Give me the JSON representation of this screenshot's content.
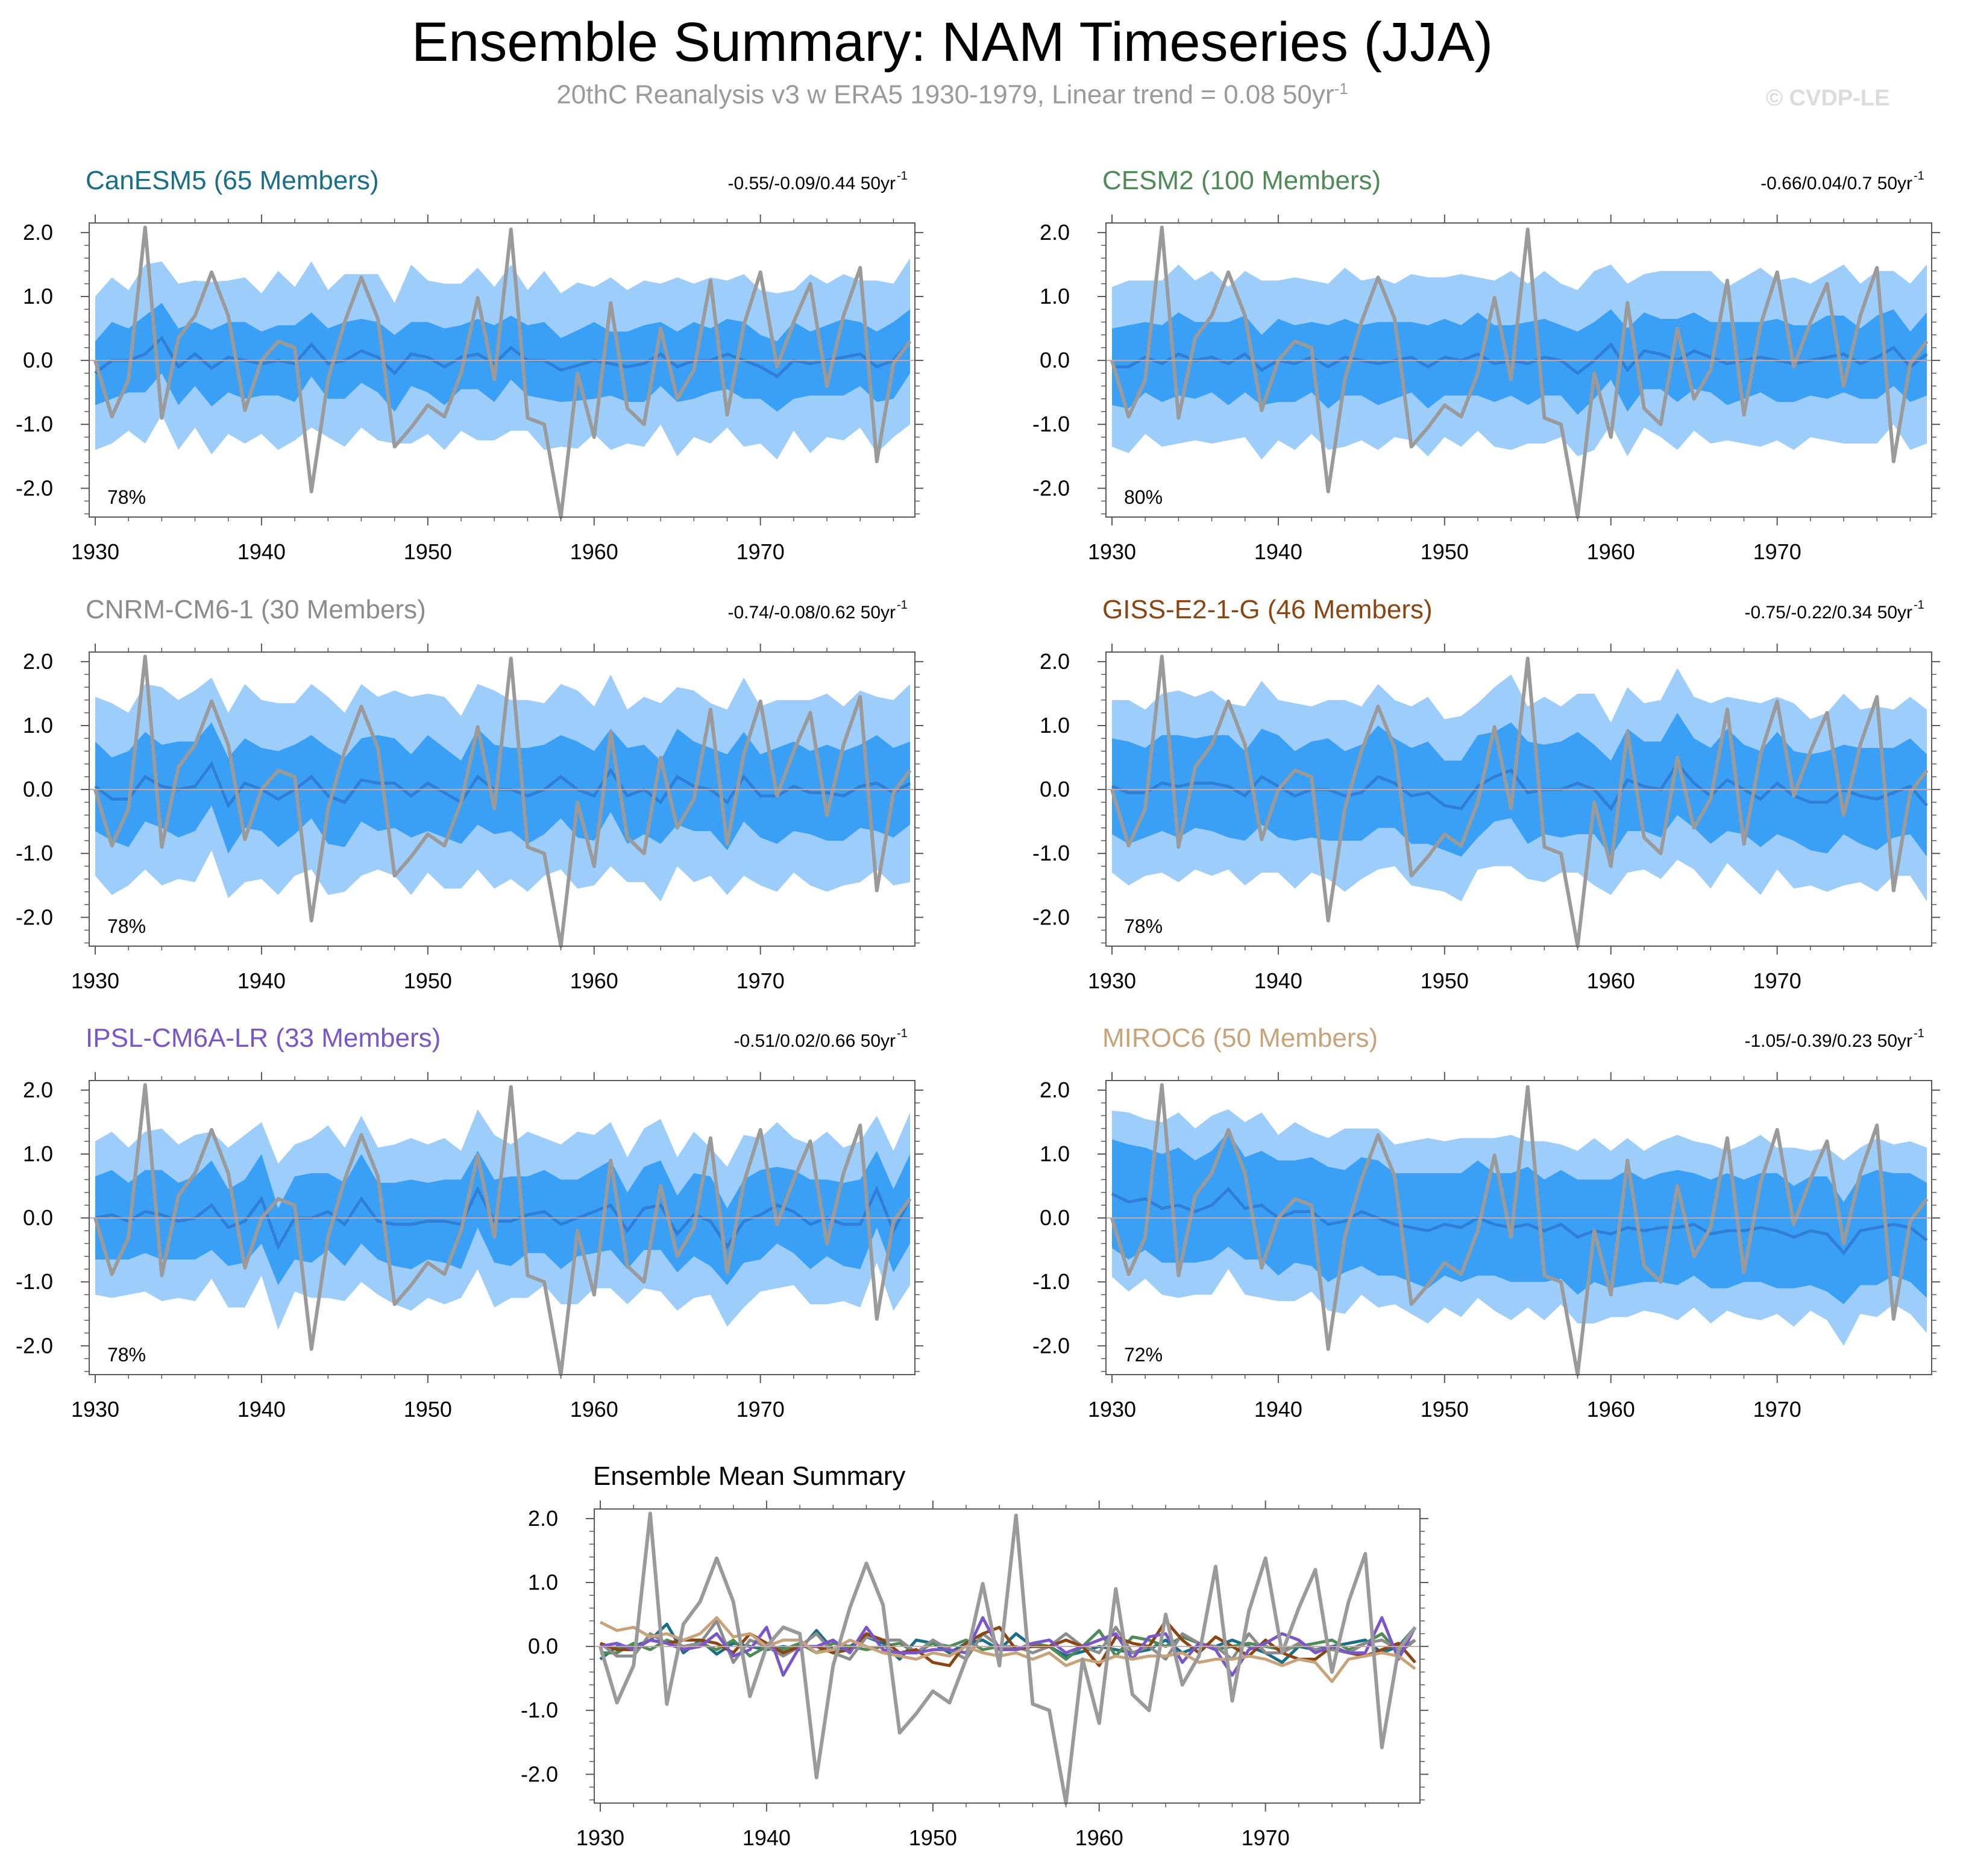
{
  "title": "Ensemble Summary: NAM Timeseries (JJA)",
  "subtitle": {
    "text": "20thC Reanalysis v3 w ERA5 1930-1979, Linear trend = 0.08 50yr",
    "superscript": "-1"
  },
  "credit": "© CVDP-LE",
  "unit_text": "50yr",
  "unit_superscript": "-1",
  "colors": {
    "outer_band": "#9dcdfa",
    "inner_band": "#3aa0f5",
    "ens_mean": "#2f7fd6",
    "observed": "#9a9a9a",
    "zero_line": "#c7a8a8",
    "frame": "#5a5a5a"
  },
  "chart_data": {
    "type": "line",
    "x": [
      1930,
      1931,
      1932,
      1933,
      1934,
      1935,
      1936,
      1937,
      1938,
      1939,
      1940,
      1941,
      1942,
      1943,
      1944,
      1945,
      1946,
      1947,
      1948,
      1949,
      1950,
      1951,
      1952,
      1953,
      1954,
      1955,
      1956,
      1957,
      1958,
      1959,
      1960,
      1961,
      1962,
      1963,
      1964,
      1965,
      1966,
      1967,
      1968,
      1969,
      1970,
      1971,
      1972,
      1973,
      1974,
      1975,
      1976,
      1977,
      1978,
      1979
    ],
    "x_ticks": [
      "1930",
      "1940",
      "1950",
      "1960",
      "1970"
    ],
    "y_ticks": [
      "2.0",
      "1.0",
      "0.0",
      "-1.0",
      "-2.0"
    ],
    "ylim": [
      -2.45,
      2.15
    ],
    "observed": {
      "name": "20thC Reanalysis v3 w ERA5",
      "values": [
        0.0,
        -0.88,
        -0.3,
        2.08,
        -0.9,
        0.35,
        0.7,
        1.38,
        0.7,
        -0.78,
        0.0,
        0.3,
        0.2,
        -2.05,
        -0.3,
        0.6,
        1.3,
        0.65,
        -1.35,
        -1.05,
        -0.7,
        -0.88,
        -0.2,
        0.98,
        -0.3,
        2.05,
        -0.9,
        -1.0,
        -2.45,
        -0.2,
        -1.2,
        0.9,
        -0.75,
        -1.0,
        0.5,
        -0.6,
        -0.15,
        1.25,
        -0.85,
        0.55,
        1.38,
        -0.1,
        0.6,
        1.2,
        -0.4,
        0.7,
        1.45,
        -1.58,
        -0.05,
        0.3
      ]
    },
    "panels": [
      {
        "model": "CanESM5",
        "members_text": "(65 Members)",
        "color": "#1a6e85",
        "trend_text": "-0.55/-0.09/0.44 50yr",
        "percent": "78%",
        "mean": [
          -0.2,
          0.0,
          0.0,
          0.1,
          0.35,
          -0.1,
          0.1,
          -0.12,
          0.05,
          0.0,
          -0.05,
          0.0,
          -0.05,
          0.25,
          -0.05,
          0.0,
          0.15,
          0.05,
          -0.2,
          0.1,
          0.05,
          -0.1,
          0.05,
          0.1,
          -0.05,
          0.2,
          0.0,
          0.0,
          -0.15,
          -0.08,
          0.0,
          -0.05,
          -0.1,
          -0.05,
          0.1,
          -0.1,
          0.0,
          0.0,
          0.1,
          0.0,
          -0.1,
          -0.25,
          0.0,
          -0.05,
          0.0,
          0.05,
          0.1,
          -0.1,
          0.0,
          0.3
        ],
        "inner_hw": [
          0.5,
          0.6,
          0.5,
          0.6,
          0.55,
          0.6,
          0.5,
          0.6,
          0.55,
          0.6,
          0.5,
          0.55,
          0.6,
          0.5,
          0.55,
          0.6,
          0.5,
          0.55,
          0.6,
          0.5,
          0.55,
          0.6,
          0.5,
          0.55,
          0.6,
          0.5,
          0.55,
          0.6,
          0.5,
          0.55,
          0.6,
          0.5,
          0.55,
          0.6,
          0.5,
          0.55,
          0.6,
          0.5,
          0.55,
          0.6,
          0.5,
          0.55,
          0.6,
          0.5,
          0.55,
          0.6,
          0.5,
          0.55,
          0.6,
          0.5
        ],
        "outer_hw": [
          1.2,
          1.3,
          1.1,
          1.4,
          1.2,
          1.3,
          1.15,
          1.35,
          1.2,
          1.3,
          1.1,
          1.4,
          1.2,
          1.3,
          1.15,
          1.35,
          1.2,
          1.3,
          1.1,
          1.4,
          1.2,
          1.3,
          1.15,
          1.35,
          1.2,
          1.3,
          1.1,
          1.4,
          1.2,
          1.3,
          1.15,
          1.35,
          1.2,
          1.3,
          1.1,
          1.4,
          1.2,
          1.3,
          1.15,
          1.35,
          1.2,
          1.3,
          1.1,
          1.4,
          1.2,
          1.3,
          1.15,
          1.35,
          1.2,
          1.3
        ]
      },
      {
        "model": "CESM2",
        "members_text": "(100 Members)",
        "color": "#4f8a57",
        "trend_text": "-0.66/0.04/0.7 50yr",
        "percent": "80%",
        "mean": [
          -0.1,
          -0.1,
          0.05,
          -0.05,
          0.1,
          0.0,
          0.05,
          -0.05,
          0.1,
          -0.15,
          0.0,
          -0.05,
          0.05,
          -0.1,
          0.05,
          0.0,
          -0.05,
          0.0,
          0.05,
          -0.1,
          0.05,
          0.0,
          0.1,
          -0.05,
          0.0,
          -0.05,
          0.05,
          0.0,
          -0.2,
          0.0,
          0.25,
          -0.15,
          0.15,
          0.1,
          0.0,
          0.15,
          0.05,
          -0.05,
          0.0,
          0.05,
          0.0,
          -0.05,
          0.0,
          0.05,
          0.1,
          -0.05,
          0.05,
          0.2,
          -0.1,
          0.1
        ],
        "inner_hw": [
          0.6,
          0.65,
          0.55,
          0.6,
          0.65,
          0.6,
          0.55,
          0.65,
          0.6,
          0.55,
          0.65,
          0.6,
          0.55,
          0.65,
          0.6,
          0.55,
          0.65,
          0.6,
          0.55,
          0.65,
          0.6,
          0.55,
          0.65,
          0.6,
          0.55,
          0.65,
          0.6,
          0.55,
          0.65,
          0.6,
          0.55,
          0.65,
          0.6,
          0.55,
          0.65,
          0.6,
          0.55,
          0.65,
          0.6,
          0.55,
          0.65,
          0.6,
          0.55,
          0.65,
          0.6,
          0.55,
          0.65,
          0.6,
          0.55,
          0.65
        ],
        "outer_hw": [
          1.25,
          1.35,
          1.2,
          1.3,
          1.4,
          1.25,
          1.35,
          1.2,
          1.3,
          1.4,
          1.25,
          1.35,
          1.2,
          1.3,
          1.4,
          1.25,
          1.35,
          1.2,
          1.3,
          1.4,
          1.25,
          1.35,
          1.2,
          1.3,
          1.4,
          1.25,
          1.35,
          1.2,
          1.3,
          1.4,
          1.25,
          1.35,
          1.2,
          1.3,
          1.4,
          1.25,
          1.35,
          1.2,
          1.3,
          1.4,
          1.25,
          1.35,
          1.2,
          1.3,
          1.4,
          1.25,
          1.35,
          1.2,
          1.3,
          1.4
        ]
      },
      {
        "model": "CNRM-CM6-1",
        "members_text": "(30 Members)",
        "color": "#8c8c8c",
        "trend_text": "-0.74/-0.08/0.62 50yr",
        "percent": "78%",
        "mean": [
          0.05,
          -0.15,
          -0.15,
          0.2,
          0.05,
          0.0,
          0.05,
          0.4,
          -0.25,
          0.1,
          0.0,
          -0.15,
          0.0,
          0.2,
          -0.1,
          -0.2,
          0.15,
          0.1,
          0.1,
          -0.1,
          0.1,
          -0.05,
          -0.2,
          0.2,
          0.0,
          0.0,
          -0.1,
          0.0,
          0.2,
          0.0,
          -0.1,
          0.3,
          -0.1,
          0.0,
          -0.2,
          0.2,
          0.05,
          0.0,
          -0.2,
          0.2,
          -0.1,
          -0.1,
          0.05,
          -0.05,
          -0.05,
          -0.1,
          0.05,
          0.1,
          -0.05,
          0.1
        ],
        "inner_hw": [
          0.7,
          0.65,
          0.75,
          0.7,
          0.65,
          0.75,
          0.7,
          0.65,
          0.75,
          0.7,
          0.65,
          0.75,
          0.7,
          0.65,
          0.75,
          0.7,
          0.65,
          0.75,
          0.7,
          0.65,
          0.75,
          0.7,
          0.65,
          0.75,
          0.7,
          0.65,
          0.75,
          0.7,
          0.65,
          0.75,
          0.7,
          0.65,
          0.75,
          0.7,
          0.65,
          0.75,
          0.7,
          0.65,
          0.75,
          0.7,
          0.65,
          0.75,
          0.7,
          0.65,
          0.75,
          0.7,
          0.65,
          0.75,
          0.7,
          0.65
        ],
        "outer_hw": [
          1.4,
          1.5,
          1.35,
          1.45,
          1.55,
          1.4,
          1.5,
          1.35,
          1.45,
          1.55,
          1.4,
          1.5,
          1.35,
          1.45,
          1.55,
          1.4,
          1.5,
          1.35,
          1.45,
          1.55,
          1.4,
          1.5,
          1.35,
          1.45,
          1.55,
          1.4,
          1.5,
          1.35,
          1.45,
          1.55,
          1.4,
          1.5,
          1.35,
          1.45,
          1.55,
          1.4,
          1.5,
          1.35,
          1.45,
          1.55,
          1.4,
          1.5,
          1.35,
          1.45,
          1.55,
          1.4,
          1.5,
          1.35,
          1.45,
          1.55
        ]
      },
      {
        "model": "GISS-E2-1-G",
        "members_text": "(46 Members)",
        "color": "#8b4513",
        "trend_text": "-0.75/-0.22/0.34 50yr",
        "percent": "78%",
        "mean": [
          0.05,
          -0.05,
          -0.05,
          0.1,
          0.05,
          0.1,
          0.1,
          0.05,
          -0.1,
          0.2,
          0.05,
          -0.1,
          0.0,
          0.0,
          -0.1,
          -0.05,
          0.2,
          0.1,
          -0.1,
          -0.05,
          -0.25,
          -0.3,
          0.05,
          0.2,
          0.3,
          -0.05,
          0.0,
          0.0,
          0.1,
          0.0,
          -0.3,
          0.15,
          0.05,
          0.0,
          0.4,
          0.1,
          -0.1,
          0.15,
          0.0,
          -0.15,
          0.1,
          -0.1,
          -0.2,
          -0.2,
          0.0,
          -0.1,
          -0.15,
          -0.05,
          0.05,
          -0.25
        ],
        "inner_hw": [
          0.75,
          0.8,
          0.7,
          0.75,
          0.8,
          0.7,
          0.75,
          0.8,
          0.7,
          0.75,
          0.8,
          0.7,
          0.75,
          0.8,
          0.7,
          0.75,
          0.8,
          0.7,
          0.75,
          0.8,
          0.7,
          0.75,
          0.8,
          0.7,
          0.75,
          0.8,
          0.7,
          0.75,
          0.8,
          0.7,
          0.75,
          0.8,
          0.7,
          0.75,
          0.8,
          0.7,
          0.75,
          0.8,
          0.7,
          0.75,
          0.8,
          0.7,
          0.75,
          0.8,
          0.7,
          0.75,
          0.8,
          0.7,
          0.75,
          0.8
        ],
        "outer_hw": [
          1.35,
          1.45,
          1.3,
          1.4,
          1.5,
          1.35,
          1.45,
          1.3,
          1.4,
          1.5,
          1.35,
          1.45,
          1.3,
          1.4,
          1.5,
          1.35,
          1.45,
          1.3,
          1.4,
          1.5,
          1.35,
          1.45,
          1.3,
          1.4,
          1.5,
          1.35,
          1.45,
          1.3,
          1.4,
          1.5,
          1.35,
          1.45,
          1.3,
          1.4,
          1.5,
          1.35,
          1.45,
          1.3,
          1.4,
          1.5,
          1.35,
          1.45,
          1.3,
          1.4,
          1.5,
          1.35,
          1.45,
          1.3,
          1.4,
          1.5
        ]
      },
      {
        "model": "IPSL-CM6A-LR",
        "members_text": "(33 Members)",
        "color": "#7a56c8",
        "trend_text": "-0.51/0.02/0.66 50yr",
        "percent": "78%",
        "mean": [
          0.0,
          0.05,
          -0.05,
          0.1,
          0.05,
          -0.05,
          0.0,
          0.2,
          -0.15,
          -0.05,
          0.3,
          -0.45,
          0.0,
          0.0,
          0.1,
          -0.1,
          0.3,
          -0.05,
          -0.1,
          -0.1,
          -0.05,
          -0.05,
          -0.1,
          0.45,
          -0.05,
          -0.05,
          0.05,
          0.1,
          -0.1,
          0.0,
          0.1,
          0.2,
          -0.2,
          0.15,
          0.2,
          -0.25,
          0.05,
          -0.05,
          -0.45,
          -0.05,
          0.05,
          0.2,
          0.1,
          -0.1,
          0.0,
          -0.1,
          -0.1,
          0.45,
          -0.2,
          0.3
        ],
        "inner_hw": [
          0.65,
          0.7,
          0.6,
          0.65,
          0.7,
          0.6,
          0.65,
          0.7,
          0.6,
          0.65,
          0.7,
          0.6,
          0.65,
          0.7,
          0.6,
          0.65,
          0.7,
          0.6,
          0.65,
          0.7,
          0.6,
          0.65,
          0.7,
          0.6,
          0.65,
          0.7,
          0.6,
          0.65,
          0.7,
          0.6,
          0.65,
          0.7,
          0.6,
          0.65,
          0.7,
          0.6,
          0.65,
          0.7,
          0.6,
          0.65,
          0.7,
          0.6,
          0.65,
          0.7,
          0.6,
          0.65,
          0.7,
          0.6,
          0.65,
          0.7
        ],
        "outer_hw": [
          1.2,
          1.3,
          1.15,
          1.25,
          1.35,
          1.2,
          1.3,
          1.15,
          1.25,
          1.35,
          1.2,
          1.3,
          1.15,
          1.25,
          1.35,
          1.2,
          1.3,
          1.15,
          1.25,
          1.35,
          1.2,
          1.3,
          1.15,
          1.25,
          1.35,
          1.2,
          1.3,
          1.15,
          1.25,
          1.35,
          1.2,
          1.3,
          1.15,
          1.25,
          1.35,
          1.2,
          1.3,
          1.15,
          1.25,
          1.35,
          1.2,
          1.3,
          1.15,
          1.25,
          1.35,
          1.2,
          1.3,
          1.15,
          1.25,
          1.35
        ]
      },
      {
        "model": "MIROC6",
        "members_text": "(50 Members)",
        "color": "#c8a37a",
        "trend_text": "-1.05/-0.39/0.23 50yr",
        "percent": "72%",
        "mean": [
          0.38,
          0.25,
          0.3,
          0.15,
          0.2,
          0.1,
          0.2,
          0.45,
          0.15,
          0.2,
          0.0,
          0.1,
          0.1,
          -0.1,
          -0.05,
          0.1,
          0.0,
          -0.1,
          -0.15,
          -0.2,
          -0.1,
          -0.15,
          0.0,
          -0.1,
          -0.15,
          -0.1,
          -0.2,
          -0.1,
          -0.3,
          -0.2,
          -0.25,
          -0.15,
          -0.2,
          -0.15,
          -0.15,
          -0.1,
          -0.25,
          -0.2,
          -0.2,
          -0.15,
          -0.2,
          -0.3,
          -0.2,
          -0.25,
          -0.55,
          -0.2,
          -0.15,
          -0.1,
          -0.15,
          -0.35
        ],
        "inner_hw": [
          0.85,
          0.9,
          0.8,
          0.85,
          0.9,
          0.8,
          0.85,
          0.9,
          0.8,
          0.85,
          0.9,
          0.8,
          0.85,
          0.9,
          0.8,
          0.85,
          0.9,
          0.8,
          0.85,
          0.9,
          0.8,
          0.85,
          0.9,
          0.8,
          0.85,
          0.9,
          0.8,
          0.85,
          0.9,
          0.8,
          0.85,
          0.9,
          0.8,
          0.85,
          0.9,
          0.8,
          0.85,
          0.9,
          0.8,
          0.85,
          0.9,
          0.8,
          0.85,
          0.9,
          0.8,
          0.85,
          0.9,
          0.8,
          0.85,
          0.9
        ],
        "outer_hw": [
          1.3,
          1.4,
          1.25,
          1.35,
          1.45,
          1.3,
          1.4,
          1.25,
          1.35,
          1.45,
          1.3,
          1.4,
          1.25,
          1.35,
          1.45,
          1.3,
          1.4,
          1.25,
          1.35,
          1.45,
          1.3,
          1.4,
          1.25,
          1.35,
          1.45,
          1.3,
          1.4,
          1.25,
          1.35,
          1.45,
          1.3,
          1.4,
          1.25,
          1.35,
          1.45,
          1.3,
          1.4,
          1.25,
          1.35,
          1.45,
          1.3,
          1.4,
          1.25,
          1.35,
          1.45,
          1.3,
          1.4,
          1.25,
          1.35,
          1.45
        ]
      }
    ],
    "summary": {
      "title": "Ensemble Mean Summary",
      "series_order": [
        "CanESM5",
        "CESM2",
        "CNRM-CM6-1",
        "GISS-E2-1-G",
        "IPSL-CM6A-LR",
        "MIROC6",
        "observed"
      ]
    }
  }
}
